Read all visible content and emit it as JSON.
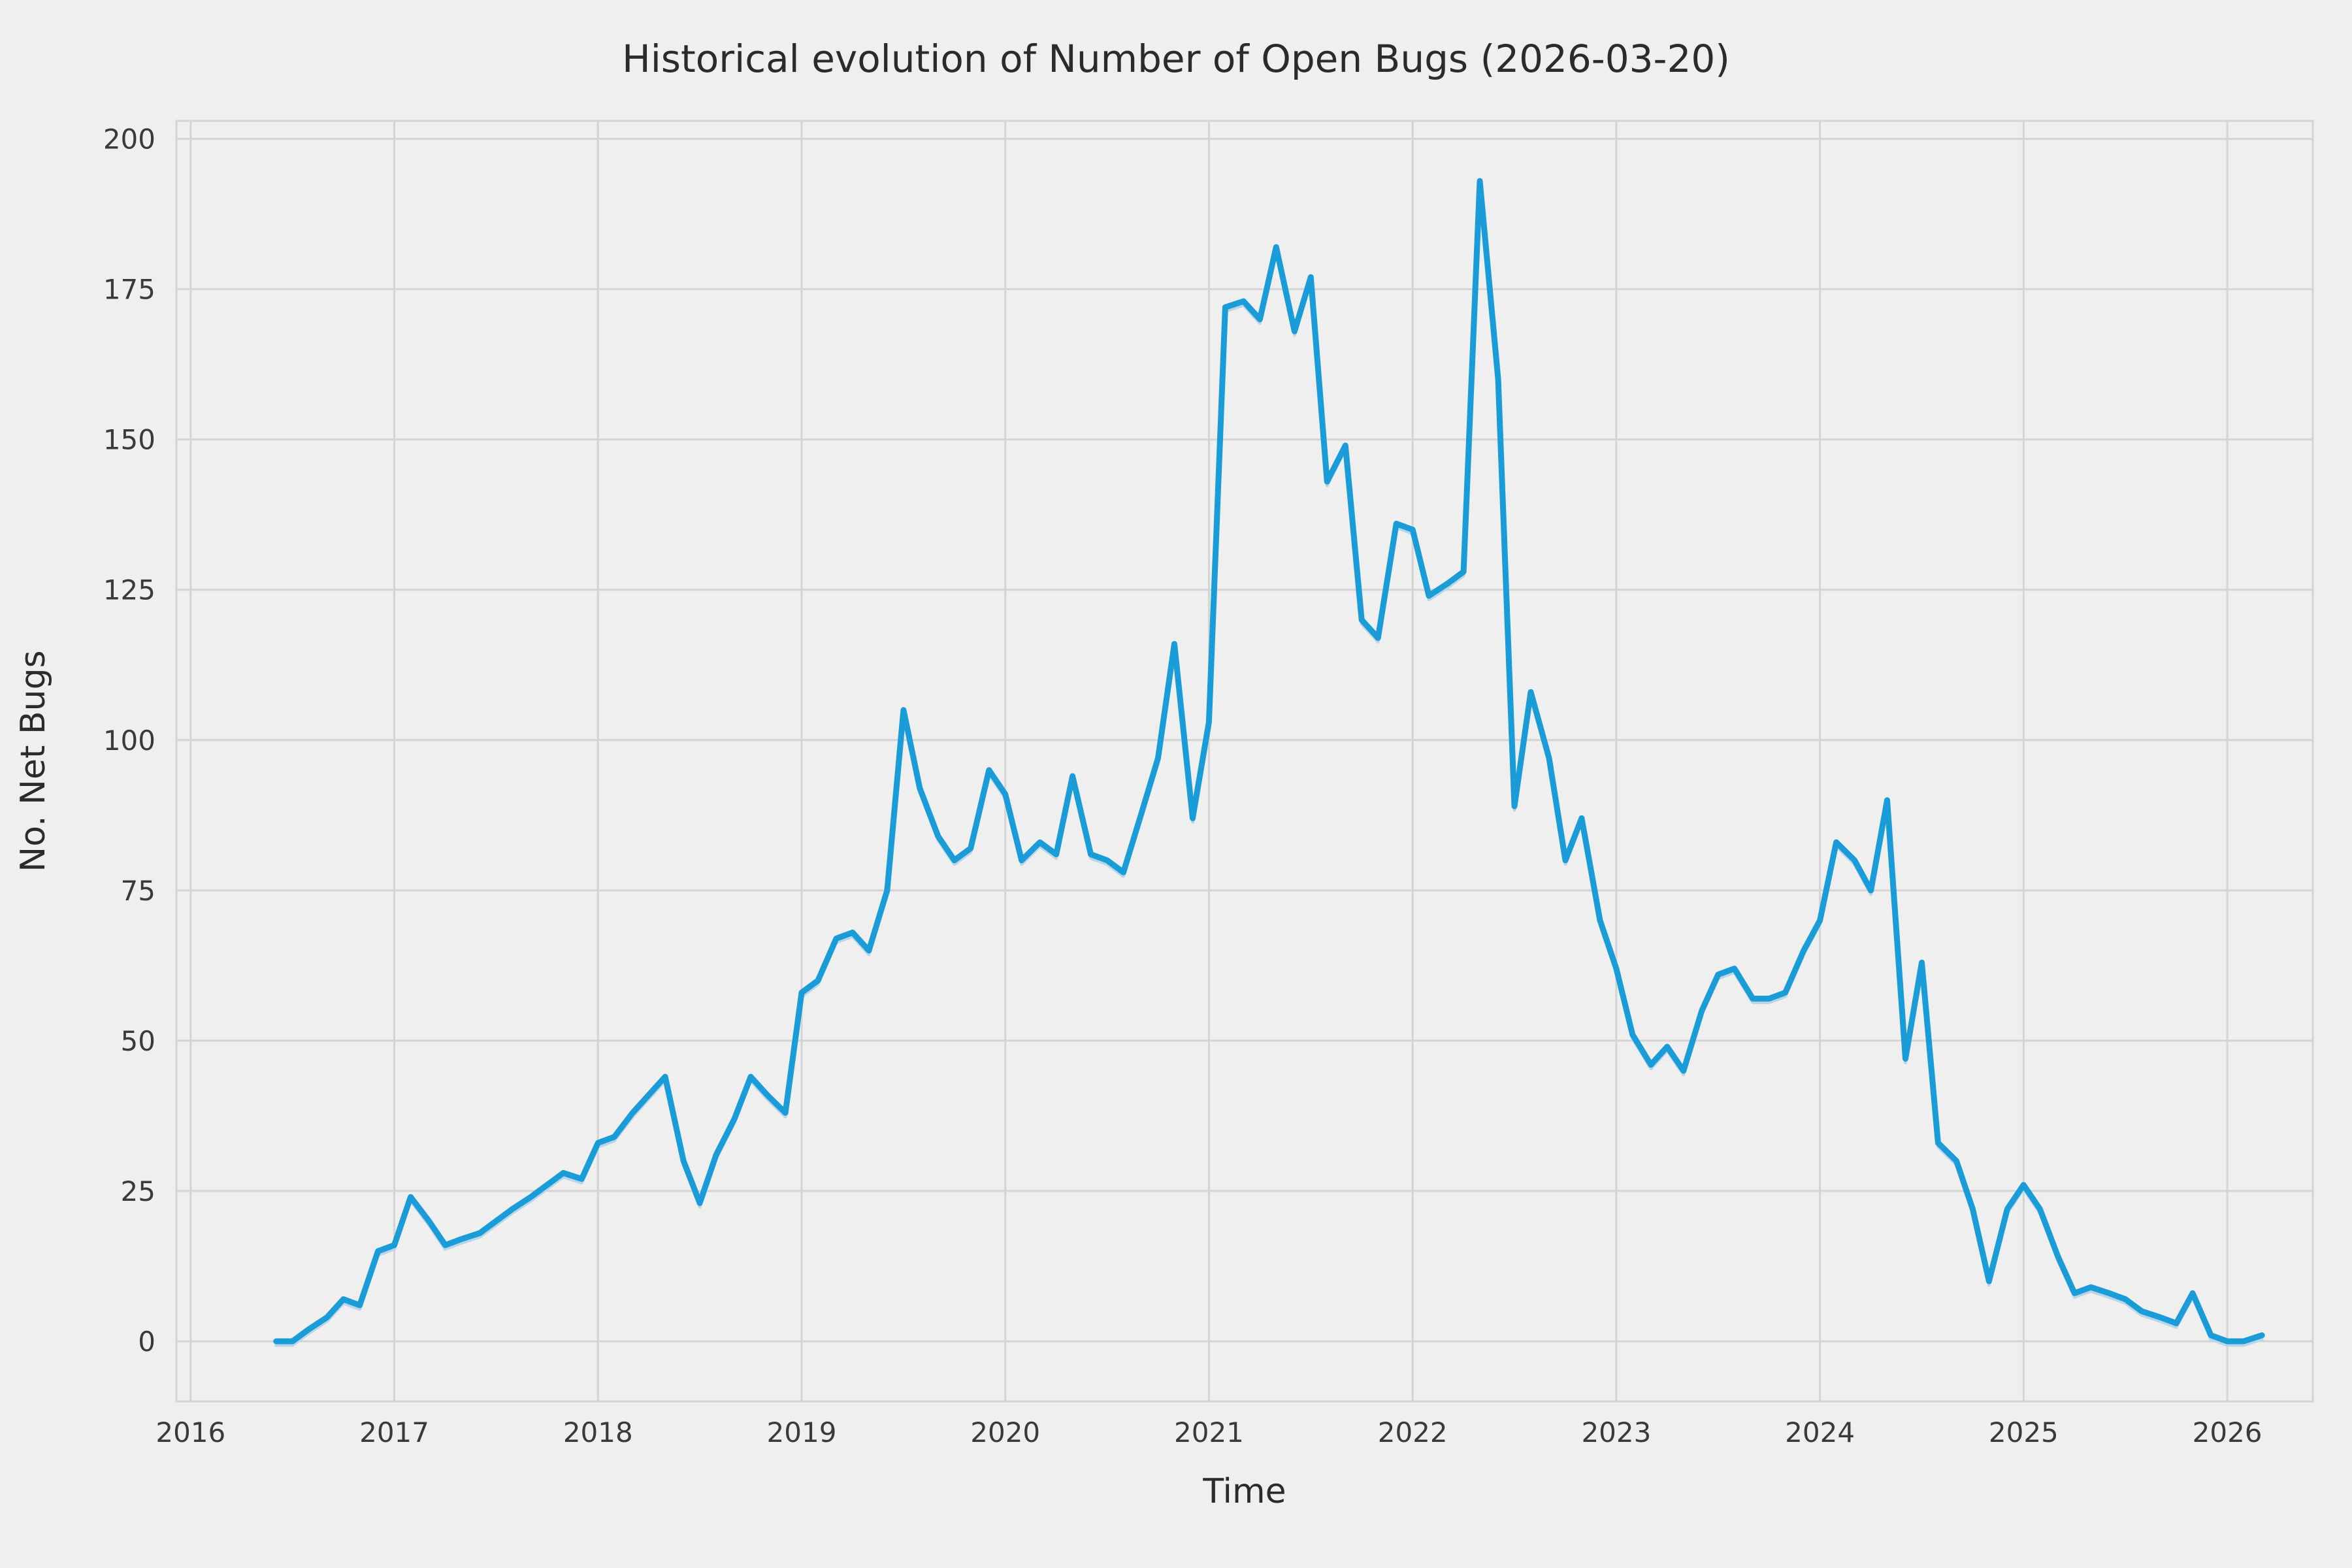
{
  "chart_data": {
    "type": "line",
    "title": "Historical evolution of Number of Open Bugs (2026-03-20)",
    "xlabel": "Time",
    "ylabel": "No. Net Bugs",
    "x_ticks": [
      2016,
      2017,
      2018,
      2019,
      2020,
      2021,
      2022,
      2023,
      2024,
      2025,
      2026
    ],
    "y_ticks": [
      0,
      25,
      50,
      75,
      100,
      125,
      150,
      175,
      200
    ],
    "xlim": [
      2015.93,
      2026.42
    ],
    "ylim": [
      -10,
      203
    ],
    "grid": true,
    "legend": "none",
    "colors": {
      "line": "#1a9cd8",
      "line_shadow": "#b9d5e8",
      "grid": "#d4d4d4",
      "background": "#efefef",
      "text": "#2b2b2b",
      "tick_text": "#3a3a3a"
    },
    "series": [
      {
        "name": "open-bugs",
        "x": [
          2016.42,
          2016.5,
          2016.58,
          2016.67,
          2016.75,
          2016.83,
          2016.92,
          2017.0,
          2017.08,
          2017.17,
          2017.25,
          2017.33,
          2017.42,
          2017.5,
          2017.58,
          2017.67,
          2017.75,
          2017.83,
          2017.92,
          2018.0,
          2018.08,
          2018.17,
          2018.25,
          2018.33,
          2018.42,
          2018.5,
          2018.58,
          2018.67,
          2018.75,
          2018.83,
          2018.92,
          2019.0,
          2019.08,
          2019.17,
          2019.25,
          2019.33,
          2019.42,
          2019.5,
          2019.58,
          2019.67,
          2019.75,
          2019.83,
          2019.92,
          2020.0,
          2020.08,
          2020.17,
          2020.25,
          2020.33,
          2020.42,
          2020.5,
          2020.58,
          2020.67,
          2020.75,
          2020.83,
          2020.92,
          2021.0,
          2021.08,
          2021.17,
          2021.25,
          2021.33,
          2021.42,
          2021.5,
          2021.58,
          2021.67,
          2021.75,
          2021.83,
          2021.92,
          2022.0,
          2022.08,
          2022.17,
          2022.25,
          2022.33,
          2022.42,
          2022.5,
          2022.58,
          2022.67,
          2022.75,
          2022.83,
          2022.92,
          2023.0,
          2023.08,
          2023.17,
          2023.25,
          2023.33,
          2023.42,
          2023.5,
          2023.58,
          2023.67,
          2023.75,
          2023.83,
          2023.92,
          2024.0,
          2024.08,
          2024.17,
          2024.25,
          2024.33,
          2024.42,
          2024.5,
          2024.58,
          2024.67,
          2024.75,
          2024.83,
          2024.92,
          2025.0,
          2025.08,
          2025.17,
          2025.25,
          2025.33,
          2025.42,
          2025.5,
          2025.58,
          2025.67,
          2025.75,
          2025.83,
          2025.92,
          2026.0,
          2026.08,
          2026.17
        ],
        "y": [
          0,
          0,
          2,
          4,
          7,
          6,
          15,
          16,
          24,
          20,
          16,
          17,
          18,
          20,
          22,
          24,
          26,
          28,
          27,
          33,
          34,
          38,
          41,
          44,
          30,
          23,
          31,
          37,
          44,
          41,
          38,
          58,
          60,
          67,
          68,
          65,
          75,
          105,
          92,
          84,
          80,
          82,
          95,
          91,
          80,
          83,
          81,
          94,
          81,
          80,
          78,
          88,
          97,
          116,
          87,
          103,
          172,
          173,
          170,
          182,
          168,
          177,
          143,
          149,
          120,
          117,
          136,
          135,
          124,
          126,
          128,
          193,
          160,
          89,
          108,
          97,
          80,
          87,
          70,
          62,
          51,
          46,
          49,
          45,
          55,
          61,
          62,
          57,
          57,
          58,
          65,
          70,
          83,
          80,
          75,
          90,
          47,
          63,
          33,
          30,
          22,
          10,
          22,
          26,
          22,
          14,
          8,
          9,
          8,
          7,
          5,
          4,
          3,
          8,
          1,
          0,
          0,
          1
        ]
      }
    ]
  }
}
